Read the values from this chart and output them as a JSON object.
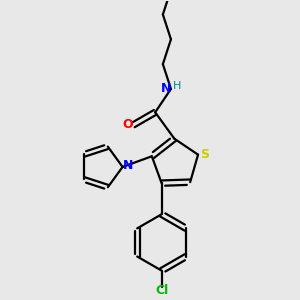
{
  "background_color": "#e8e8e8",
  "bond_color": "#000000",
  "sulfur_color": "#cccc00",
  "nitrogen_color": "#0000ff",
  "oxygen_color": "#ff0000",
  "chlorine_color": "#00bb00",
  "hydrogen_color": "#008888",
  "line_width": 1.6,
  "figsize": [
    3.0,
    3.0
  ],
  "dpi": 100,
  "xlim": [
    0,
    10
  ],
  "ylim": [
    0,
    10
  ]
}
